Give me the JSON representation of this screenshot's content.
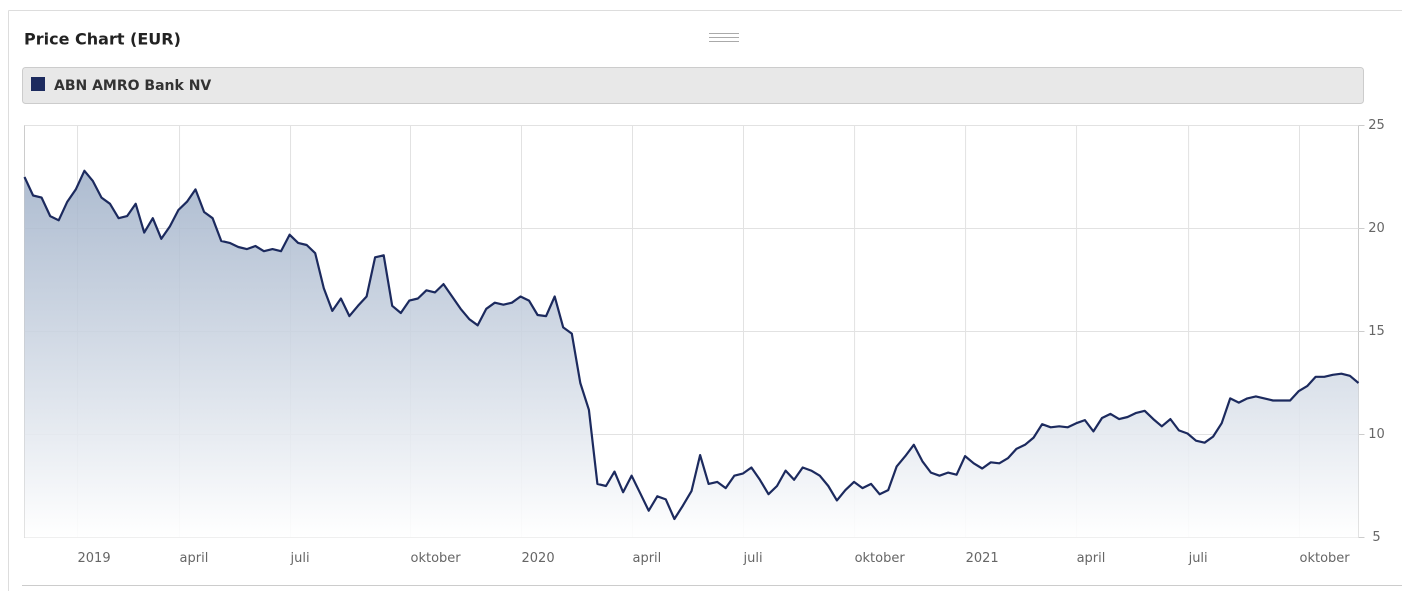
{
  "chart_data": {
    "type": "area",
    "title": "Price Chart (EUR)",
    "series": [
      {
        "name": "ABN AMRO Bank NV",
        "color": "#1c2a5e",
        "values": [
          22.5,
          21.6,
          21.5,
          20.6,
          20.4,
          21.3,
          21.9,
          22.8,
          22.3,
          21.5,
          21.2,
          20.5,
          20.6,
          21.2,
          19.8,
          20.5,
          19.5,
          20.1,
          20.9,
          21.3,
          21.9,
          20.8,
          20.5,
          19.4,
          19.3,
          19.1,
          19.0,
          19.15,
          18.9,
          19.0,
          18.9,
          19.7,
          19.3,
          19.2,
          18.8,
          17.1,
          16.0,
          16.6,
          15.75,
          16.25,
          16.7,
          18.6,
          18.7,
          16.25,
          15.9,
          16.5,
          16.6,
          17.0,
          16.9,
          17.3,
          16.7,
          16.1,
          15.6,
          15.3,
          16.1,
          16.4,
          16.3,
          16.4,
          16.7,
          16.5,
          15.8,
          15.75,
          16.7,
          15.2,
          14.9,
          12.5,
          11.2,
          7.6,
          7.5,
          8.2,
          7.2,
          8.0,
          7.15,
          6.3,
          7.0,
          6.85,
          5.9,
          6.55,
          7.25,
          9.0,
          7.6,
          7.7,
          7.4,
          8.0,
          8.1,
          8.4,
          7.8,
          7.1,
          7.5,
          8.25,
          7.8,
          8.4,
          8.25,
          8.0,
          7.5,
          6.8,
          7.3,
          7.7,
          7.4,
          7.6,
          7.1,
          7.3,
          8.45,
          8.95,
          9.5,
          8.7,
          8.15,
          8.0,
          8.15,
          8.05,
          8.95,
          8.6,
          8.35,
          8.65,
          8.6,
          8.85,
          9.3,
          9.5,
          9.85,
          10.5,
          10.35,
          10.4,
          10.35,
          10.55,
          10.7,
          10.15,
          10.8,
          11.0,
          10.75,
          10.85,
          11.05,
          11.15,
          10.75,
          10.4,
          10.75,
          10.2,
          10.05,
          9.7,
          9.6,
          9.9,
          10.55,
          11.75,
          11.55,
          11.75,
          11.85,
          11.75,
          11.65,
          11.65,
          11.65,
          12.1,
          12.35,
          12.8,
          12.8,
          12.9,
          12.95,
          12.85,
          12.5
        ]
      }
    ],
    "xlim": [
      0,
      156
    ],
    "xticks": [
      {
        "value": 6.2,
        "label": "2019"
      },
      {
        "value": 18.13,
        "label": "april"
      },
      {
        "value": 31.11,
        "label": "juli"
      },
      {
        "value": 45.14,
        "label": "oktober"
      },
      {
        "value": 58.12,
        "label": "2020"
      },
      {
        "value": 71.1,
        "label": "april"
      },
      {
        "value": 84.08,
        "label": "juli"
      },
      {
        "value": 97.07,
        "label": "oktober"
      },
      {
        "value": 110.05,
        "label": "2021"
      },
      {
        "value": 123.03,
        "label": "april"
      },
      {
        "value": 136.13,
        "label": "juli"
      },
      {
        "value": 149.1,
        "label": "oktober"
      }
    ],
    "ylim": [
      5,
      25
    ],
    "yticks": [
      5,
      10,
      15,
      20,
      25
    ],
    "grid": true
  }
}
